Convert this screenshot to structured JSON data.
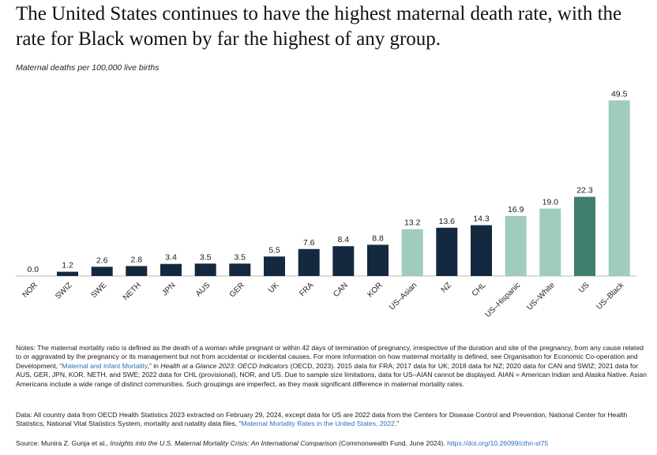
{
  "title": "The United States continues to have the highest maternal death rate, with the rate for Black women by far the highest of any group.",
  "colors": {
    "country": "#14293f",
    "us_group": "#a0ccbb",
    "us_total": "#3d7f6c",
    "axis": "#b8b8b8",
    "link": "#2a6ebb"
  },
  "chart_data": {
    "type": "bar",
    "ylabel": "Maternal deaths per 100,000 live births",
    "categories": [
      "NOR",
      "SWIZ",
      "SWE",
      "NETH",
      "JPN",
      "AUS",
      "GER",
      "UK",
      "FRA",
      "CAN",
      "KOR",
      "US–Asian",
      "NZ",
      "CHL",
      "US–Hispanic",
      "US–White",
      "US",
      "US–Black"
    ],
    "values": [
      0.0,
      1.2,
      2.6,
      2.8,
      3.4,
      3.5,
      3.5,
      5.5,
      7.6,
      8.4,
      8.8,
      13.2,
      13.6,
      14.3,
      16.9,
      19.0,
      22.3,
      49.5
    ],
    "labels": [
      "0.0",
      "1.2",
      "2.6",
      "2.8",
      "3.4",
      "3.5",
      "3.5",
      "5.5",
      "7.6",
      "8.4",
      "8.8",
      "13.2",
      "13.6",
      "14.3",
      "16.9",
      "19.0",
      "22.3",
      "49.5"
    ],
    "bar_color_keys": [
      "country",
      "country",
      "country",
      "country",
      "country",
      "country",
      "country",
      "country",
      "country",
      "country",
      "country",
      "us_group",
      "country",
      "country",
      "us_group",
      "us_group",
      "us_total",
      "us_group"
    ],
    "ylim": [
      0,
      50
    ],
    "grid": false
  },
  "notes": {
    "p1_a": "Notes: The maternal mortality ratio is defined as the death of a woman while pregnant or within 42 days of termination of pregnancy, irrespective of the duration and site of the pregnancy, from any cause related to or aggravated by the pregnancy or its management but not from accidental or incidental causes. For more information on how maternal mortality is defined, see Organisation for Economic Co-operation and Development, “",
    "p1_link": "Maternal and Infant Mortality",
    "p1_b": ",” in ",
    "p1_italic": "Health at a Glance 2023: OECD Indicators",
    "p1_c": " (OECD, 2023). 2015 data for FRA; 2017 data for UK; 2018 data for NZ; 2020 data for CAN and SWIZ; 2021 data for AUS, GER, JPN, KOR, NETH, and SWE; 2022 data for CHL (provisional), NOR, and US. Due to sample size limitations, data for US–AIAN cannot be displayed. AIAN = American Indian and Alaska Native. Asian Americans include a wide range of distinct communities. Such groupings are imperfect, as they mask significant difference in maternal mortality rates.",
    "p2_a": "Data: All country data from OECD Health Statistics 2023 extracted on February 29, 2024, except data for US are 2022 data from the Centers for Disease Control and Prevention, National Center for Health Statistics, National Vital Statistics System, mortality and natality data files, “",
    "p2_link": "Maternal Mortality Rates in the United States, 2022",
    "p2_b": ".”",
    "p3_a": "Source: Munira Z. Gunja et al., ",
    "p3_italic": "Insights into the U.S. Maternal Mortality Crisis: An International Comparison",
    "p3_b": " (Commonwealth Fund, June 2024). ",
    "p3_link": "https://doi.org/10.26099/cthn-st75"
  }
}
